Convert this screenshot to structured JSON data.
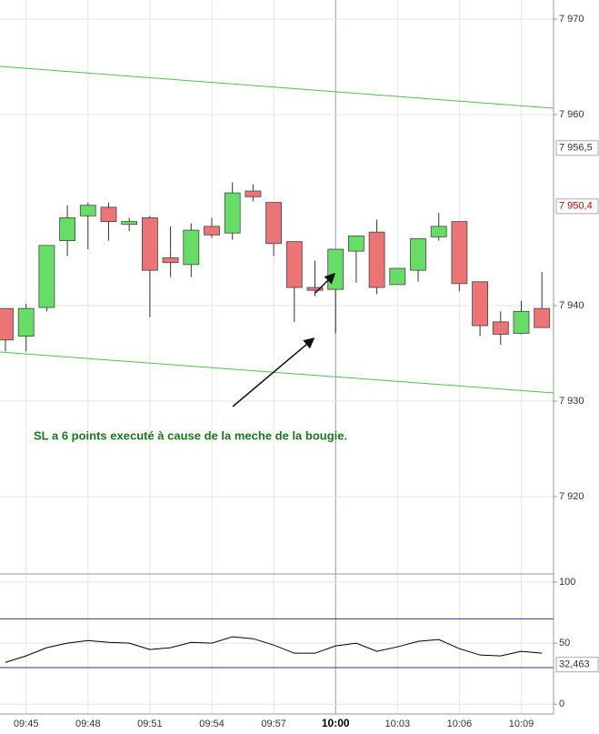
{
  "chart_data": [
    {
      "type": "candlestick",
      "categories": [
        null,
        "09:45",
        null,
        null,
        "09:48",
        null,
        null,
        "09:51",
        null,
        null,
        "09:54",
        null,
        null,
        "09:57",
        null,
        null,
        "10:00",
        null,
        null,
        "10:03",
        null,
        null,
        "10:06",
        null,
        null,
        "10:09",
        null
      ],
      "crosshair": "10:00",
      "open": [
        7939.7,
        7936.8,
        7939.8,
        7946.8,
        7949.4,
        7950.3,
        7948.5,
        7949.2,
        7945.0,
        7944.3,
        7948.3,
        7947.6,
        7952.0,
        7950.8,
        7946.7,
        7941.9,
        7941.7,
        7945.7,
        7947.7,
        7942.2,
        7943.7,
        7947.2,
        7948.8,
        7942.5,
        7938.3,
        7937.1,
        7939.7
      ],
      "high": [
        7939.7,
        7940.2,
        7946.3,
        7950.5,
        7950.8,
        7950.8,
        7949.2,
        7949.4,
        7948.3,
        7948.6,
        7949.2,
        7952.9,
        7952.7,
        7950.8,
        7946.7,
        7944.7,
        7945.9,
        7947.3,
        7949.0,
        7943.9,
        7947.0,
        7949.7,
        7948.8,
        7942.5,
        7939.4,
        7940.5,
        7943.5
      ],
      "low": [
        7935.2,
        7935.2,
        7939.4,
        7945.2,
        7945.9,
        7946.8,
        7947.8,
        7938.8,
        7943.0,
        7943.0,
        7947.1,
        7946.9,
        7950.9,
        7945.2,
        7938.3,
        7941.0,
        7937.1,
        7942.4,
        7941.2,
        7942.2,
        7942.5,
        7946.8,
        7941.5,
        7936.8,
        7935.9,
        7937.0,
        7937.7
      ],
      "close": [
        7936.4,
        7939.7,
        7946.3,
        7949.2,
        7950.5,
        7948.8,
        7948.8,
        7943.7,
        7944.5,
        7947.9,
        7947.4,
        7951.8,
        7951.4,
        7946.5,
        7941.9,
        7941.6,
        7945.9,
        7947.3,
        7941.9,
        7943.9,
        7947.0,
        7948.3,
        7942.3,
        7937.9,
        7937.0,
        7939.4,
        7937.7
      ],
      "up_color": "#66dd66",
      "down_color": "#ec7474",
      "ylim": [
        7912,
        7972
      ],
      "yticks": [
        {
          "value": 7970,
          "label": "7 970"
        },
        {
          "value": 7960,
          "label": "7 960"
        },
        {
          "value": 7940,
          "label": "7 940"
        },
        {
          "value": 7930,
          "label": "7 930"
        },
        {
          "value": 7920,
          "label": "7 920"
        }
      ],
      "markers": [
        {
          "value": 7956.5,
          "label": "7 956,5",
          "color": "#333333"
        },
        {
          "value": 7950.4,
          "label": "7 950,4",
          "color": "#cc0000"
        }
      ],
      "annotation": "SL a 6 points executé à cause de la meche de la bougie.",
      "grid": true
    },
    {
      "type": "line",
      "values": [
        34.3,
        39.6,
        46.3,
        50,
        52.2,
        50.7,
        50,
        44.8,
        46.3,
        50.7,
        50,
        55.2,
        53.7,
        48.5,
        41.8,
        41.8,
        47.8,
        50,
        43.3,
        47.0,
        51.5,
        53.0,
        45.5,
        40.3,
        39.6,
        43.3,
        41.8
      ],
      "color": "#000000",
      "levels": [
        70,
        30
      ],
      "level_color": "#333399",
      "ylim": [
        -8,
        106
      ],
      "yticks": [
        0,
        50,
        100
      ],
      "markers": [
        {
          "value": 32.463,
          "label": "32,463",
          "color": "#333333"
        }
      ]
    }
  ]
}
